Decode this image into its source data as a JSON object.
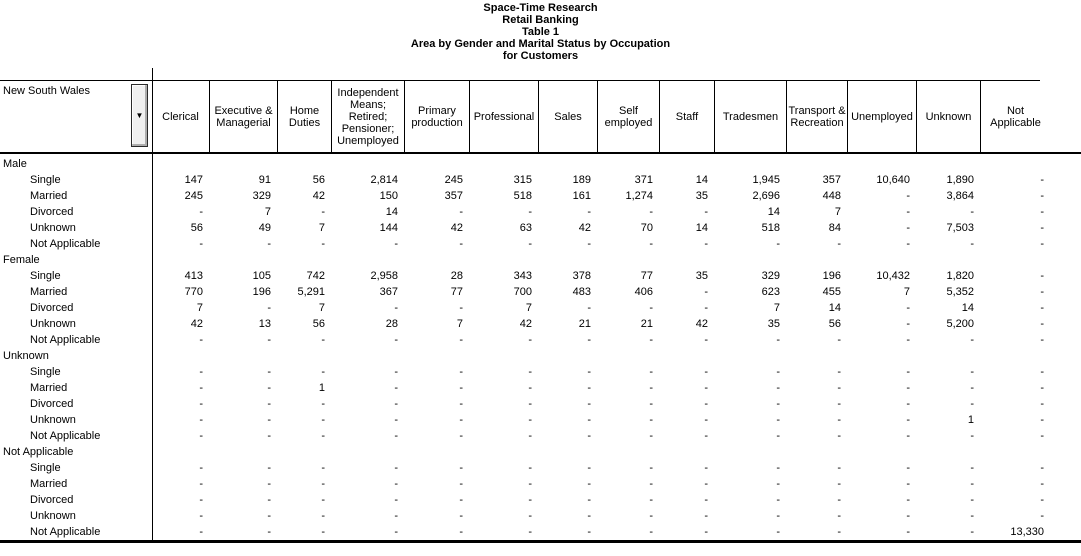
{
  "titles": [
    "Space-Time Research",
    "Retail Banking",
    "Table 1",
    "Area by Gender and Marital Status by Occupation",
    "for Customers"
  ],
  "area_selector": {
    "label": "New South Wales"
  },
  "icons": {
    "dropdown": "▼"
  },
  "columns": [
    "Clerical",
    "Executive & Managerial",
    "Home Duties",
    "Independent Means; Retired; Pensioner; Unemployed",
    "Primary production",
    "Professional",
    "Sales",
    "Self employed",
    "Staff",
    "Tradesmen",
    "Transport & Recreation",
    "Unemployed",
    "Unknown",
    "Not Applicable"
  ],
  "groups": [
    {
      "label": "Male",
      "rows": [
        {
          "label": "Single",
          "values": [
            "147",
            "91",
            "56",
            "2,814",
            "245",
            "315",
            "189",
            "371",
            "14",
            "1,945",
            "357",
            "10,640",
            "1,890",
            "-"
          ]
        },
        {
          "label": "Married",
          "values": [
            "245",
            "329",
            "42",
            "150",
            "357",
            "518",
            "161",
            "1,274",
            "35",
            "2,696",
            "448",
            "-",
            "3,864",
            "-"
          ]
        },
        {
          "label": "Divorced",
          "values": [
            "-",
            "7",
            "-",
            "14",
            "-",
            "-",
            "-",
            "-",
            "-",
            "14",
            "7",
            "-",
            "-",
            "-"
          ]
        },
        {
          "label": "Unknown",
          "values": [
            "56",
            "49",
            "7",
            "144",
            "42",
            "63",
            "42",
            "70",
            "14",
            "518",
            "84",
            "-",
            "7,503",
            "-"
          ]
        },
        {
          "label": "Not Applicable",
          "values": [
            "-",
            "-",
            "-",
            "-",
            "-",
            "-",
            "-",
            "-",
            "-",
            "-",
            "-",
            "-",
            "-",
            "-"
          ]
        }
      ]
    },
    {
      "label": "Female",
      "rows": [
        {
          "label": "Single",
          "values": [
            "413",
            "105",
            "742",
            "2,958",
            "28",
            "343",
            "378",
            "77",
            "35",
            "329",
            "196",
            "10,432",
            "1,820",
            "-"
          ]
        },
        {
          "label": "Married",
          "values": [
            "770",
            "196",
            "5,291",
            "367",
            "77",
            "700",
            "483",
            "406",
            "-",
            "623",
            "455",
            "7",
            "5,352",
            "-"
          ]
        },
        {
          "label": "Divorced",
          "values": [
            "7",
            "-",
            "7",
            "-",
            "-",
            "7",
            "-",
            "-",
            "-",
            "7",
            "14",
            "-",
            "14",
            "-"
          ]
        },
        {
          "label": "Unknown",
          "values": [
            "42",
            "13",
            "56",
            "28",
            "7",
            "42",
            "21",
            "21",
            "42",
            "35",
            "56",
            "-",
            "5,200",
            "-"
          ]
        },
        {
          "label": "Not Applicable",
          "values": [
            "-",
            "-",
            "-",
            "-",
            "-",
            "-",
            "-",
            "-",
            "-",
            "-",
            "-",
            "-",
            "-",
            "-"
          ]
        }
      ]
    },
    {
      "label": "Unknown",
      "rows": [
        {
          "label": "Single",
          "values": [
            "-",
            "-",
            "-",
            "-",
            "-",
            "-",
            "-",
            "-",
            "-",
            "-",
            "-",
            "-",
            "-",
            "-"
          ]
        },
        {
          "label": "Married",
          "values": [
            "-",
            "-",
            "1",
            "-",
            "-",
            "-",
            "-",
            "-",
            "-",
            "-",
            "-",
            "-",
            "-",
            "-"
          ]
        },
        {
          "label": "Divorced",
          "values": [
            "-",
            "-",
            "-",
            "-",
            "-",
            "-",
            "-",
            "-",
            "-",
            "-",
            "-",
            "-",
            "-",
            "-"
          ]
        },
        {
          "label": "Unknown",
          "values": [
            "-",
            "-",
            "-",
            "-",
            "-",
            "-",
            "-",
            "-",
            "-",
            "-",
            "-",
            "-",
            "1",
            "-"
          ]
        },
        {
          "label": "Not Applicable",
          "values": [
            "-",
            "-",
            "-",
            "-",
            "-",
            "-",
            "-",
            "-",
            "-",
            "-",
            "-",
            "-",
            "-",
            "-"
          ]
        }
      ]
    },
    {
      "label": "Not Applicable",
      "rows": [
        {
          "label": "Single",
          "values": [
            "-",
            "-",
            "-",
            "-",
            "-",
            "-",
            "-",
            "-",
            "-",
            "-",
            "-",
            "-",
            "-",
            "-"
          ]
        },
        {
          "label": "Married",
          "values": [
            "-",
            "-",
            "-",
            "-",
            "-",
            "-",
            "-",
            "-",
            "-",
            "-",
            "-",
            "-",
            "-",
            "-"
          ]
        },
        {
          "label": "Divorced",
          "values": [
            "-",
            "-",
            "-",
            "-",
            "-",
            "-",
            "-",
            "-",
            "-",
            "-",
            "-",
            "-",
            "-",
            "-"
          ]
        },
        {
          "label": "Unknown",
          "values": [
            "-",
            "-",
            "-",
            "-",
            "-",
            "-",
            "-",
            "-",
            "-",
            "-",
            "-",
            "-",
            "-",
            "-"
          ]
        },
        {
          "label": "Not Applicable",
          "values": [
            "-",
            "-",
            "-",
            "-",
            "-",
            "-",
            "-",
            "-",
            "-",
            "-",
            "-",
            "-",
            "-",
            "13,330"
          ]
        }
      ]
    }
  ]
}
